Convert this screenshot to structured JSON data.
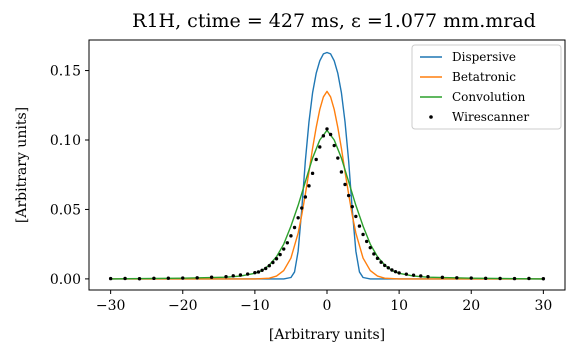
{
  "chart_data": {
    "type": "line",
    "title": "R1H, ctime = 427 ms, ε =1.077 mm.mrad",
    "xlabel": "[Arbitrary units]",
    "ylabel": "[Arbitrary units]",
    "xlim": [
      -33,
      33
    ],
    "ylim": [
      -0.008,
      0.172
    ],
    "x_ticks": [
      -30,
      -20,
      -10,
      0,
      10,
      20,
      30
    ],
    "x_tick_labels": [
      "−30",
      "−20",
      "−10",
      "0",
      "10",
      "20",
      "30"
    ],
    "y_ticks": [
      0.0,
      0.05,
      0.1,
      0.15
    ],
    "y_tick_labels": [
      "0.00",
      "0.05",
      "0.10",
      "0.15"
    ],
    "grid": false,
    "legend_position": "top-right",
    "series": [
      {
        "name": "Dispersive",
        "color": "#1f77b4",
        "kind": "line",
        "x": [
          -30,
          -6,
          -5,
          -4.5,
          -4,
          -3.5,
          -3,
          -2.5,
          -2,
          -1.5,
          -1,
          -0.5,
          0,
          0.5,
          1,
          1.5,
          2,
          2.5,
          3,
          3.5,
          4,
          4.5,
          5,
          6,
          30
        ],
        "y": [
          0.0,
          0.0,
          0.001,
          0.005,
          0.02,
          0.05,
          0.085,
          0.113,
          0.134,
          0.148,
          0.157,
          0.162,
          0.163,
          0.162,
          0.157,
          0.148,
          0.134,
          0.113,
          0.085,
          0.05,
          0.02,
          0.005,
          0.001,
          0.0,
          0.0
        ]
      },
      {
        "name": "Betatronic",
        "color": "#ff7f0e",
        "kind": "line",
        "x": [
          -30,
          -10,
          -8,
          -7,
          -6,
          -5,
          -4,
          -3.5,
          -3,
          -2.5,
          -2,
          -1.5,
          -1,
          -0.5,
          0,
          0.5,
          1,
          1.5,
          2,
          2.5,
          3,
          3.5,
          4,
          5,
          6,
          7,
          8,
          10,
          30
        ],
        "y": [
          0.0,
          0.0,
          0.0005,
          0.002,
          0.006,
          0.015,
          0.033,
          0.046,
          0.061,
          0.077,
          0.094,
          0.109,
          0.122,
          0.131,
          0.135,
          0.131,
          0.122,
          0.109,
          0.094,
          0.077,
          0.061,
          0.046,
          0.033,
          0.015,
          0.006,
          0.002,
          0.0005,
          0.0,
          0.0
        ]
      },
      {
        "name": "Convolution",
        "color": "#2ca02c",
        "kind": "line",
        "x": [
          -30,
          -20,
          -14,
          -12,
          -10,
          -9,
          -8,
          -7,
          -6,
          -5,
          -4,
          -3,
          -2,
          -1,
          0,
          1,
          2,
          3,
          4,
          5,
          6,
          7,
          8,
          9,
          10,
          12,
          14,
          20,
          30
        ],
        "y": [
          0.0,
          0.0005,
          0.0012,
          0.002,
          0.004,
          0.006,
          0.01,
          0.016,
          0.025,
          0.038,
          0.053,
          0.07,
          0.087,
          0.1,
          0.107,
          0.1,
          0.087,
          0.07,
          0.053,
          0.038,
          0.025,
          0.016,
          0.01,
          0.006,
          0.004,
          0.002,
          0.0012,
          0.0005,
          0.0
        ]
      },
      {
        "name": "Wirescanner",
        "color": "#000000",
        "kind": "scatter",
        "x": [
          -30,
          -28,
          -26,
          -24,
          -22,
          -20,
          -18,
          -16,
          -14,
          -13,
          -12,
          -11,
          -10,
          -9.5,
          -9,
          -8.5,
          -8,
          -7.5,
          -7,
          -6.5,
          -6,
          -5.5,
          -5,
          -4.5,
          -4,
          -3.5,
          -3,
          -2.5,
          -2,
          -1.5,
          -1,
          -0.5,
          0,
          0.5,
          1,
          1.5,
          2,
          2.5,
          3,
          3.5,
          4,
          4.5,
          5,
          5.5,
          6,
          6.5,
          7,
          7.5,
          8,
          8.5,
          9,
          9.5,
          10,
          11,
          12,
          13,
          14,
          16,
          18,
          20,
          22,
          24,
          26,
          28,
          30
        ],
        "y": [
          0.0002,
          0.0003,
          0.0001,
          0.0004,
          0.0005,
          0.0006,
          0.0008,
          0.0012,
          0.0016,
          0.0022,
          0.0028,
          0.0035,
          0.0045,
          0.005,
          0.0062,
          0.0075,
          0.0095,
          0.0118,
          0.0145,
          0.0175,
          0.0215,
          0.026,
          0.031,
          0.037,
          0.044,
          0.051,
          0.059,
          0.067,
          0.076,
          0.086,
          0.095,
          0.103,
          0.108,
          0.104,
          0.096,
          0.087,
          0.077,
          0.068,
          0.06,
          0.052,
          0.045,
          0.038,
          0.032,
          0.027,
          0.0225,
          0.018,
          0.0148,
          0.012,
          0.0097,
          0.008,
          0.0064,
          0.0052,
          0.0043,
          0.0034,
          0.0027,
          0.0021,
          0.0016,
          0.0011,
          0.0008,
          0.0006,
          0.0004,
          0.0003,
          0.0002,
          0.0003,
          0.0001
        ]
      }
    ]
  }
}
